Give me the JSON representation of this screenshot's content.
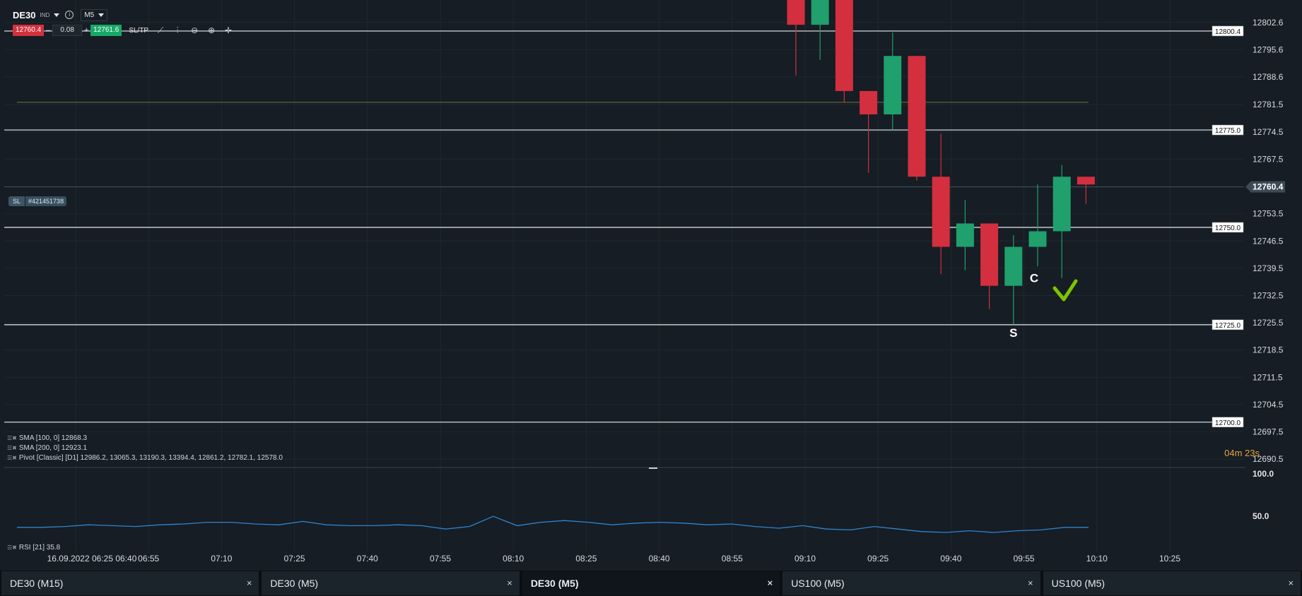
{
  "toolbar": {
    "symbol": "DE30",
    "symbol_tag": "IND",
    "timeframe": "M5",
    "sell_price": "12760.4",
    "minus": "–",
    "volume": "0.08",
    "plus": "+",
    "buy_price": "12761.6",
    "sltp_label": "SL/TP"
  },
  "sl_marker": {
    "label": "SL",
    "order_id": "#421451738"
  },
  "chart_data": {
    "type": "candlestick",
    "symbol": "DE30",
    "timeframe": "M5",
    "y_axis": {
      "ticks": [
        "12802.6",
        "12795.6",
        "12788.6",
        "12781.5",
        "12774.5",
        "12767.5",
        "12760.4",
        "12753.5",
        "12746.5",
        "12739.5",
        "12732.5",
        "12725.5",
        "12718.5",
        "12711.5",
        "12704.5",
        "12697.5",
        "12690.5"
      ],
      "range": [
        12688,
        12808
      ]
    },
    "x_axis": {
      "ticks": [
        "16.09.2022 06:25 06:40",
        "06:55",
        "07:10",
        "07:25",
        "07:40",
        "07:55",
        "08:10",
        "08:25",
        "08:40",
        "08:55",
        "09:10",
        "09:25",
        "09:40",
        "09:55",
        "10:10",
        "10:25"
      ]
    },
    "current_price": "12760.4",
    "horizontal_lines": [
      {
        "label": "12800.4",
        "value": 12800.4
      },
      {
        "label": "12775.0",
        "value": 12775.0
      },
      {
        "label": "12750.0",
        "value": 12750.0
      },
      {
        "label": "12725.0",
        "value": 12725.0
      },
      {
        "label": "12700.0",
        "value": 12700.0
      }
    ],
    "pivot_line": 12782.1,
    "candles": [
      {
        "o": 12818,
        "h": 12820,
        "c": 12802,
        "l": 12789,
        "dir": "down"
      },
      {
        "o": 12802,
        "h": 12820,
        "c": 12818,
        "l": 12793,
        "dir": "up"
      },
      {
        "o": 12818,
        "h": 12820,
        "c": 12785,
        "l": 12782,
        "dir": "down"
      },
      {
        "o": 12785,
        "h": 12785,
        "c": 12779,
        "l": 12764,
        "dir": "down"
      },
      {
        "o": 12779,
        "h": 12800,
        "c": 12794,
        "l": 12775,
        "dir": "up"
      },
      {
        "o": 12794,
        "h": 12794,
        "c": 12763,
        "l": 12762,
        "dir": "down"
      },
      {
        "o": 12763,
        "h": 12774,
        "c": 12745,
        "l": 12738,
        "dir": "down"
      },
      {
        "o": 12745,
        "h": 12757,
        "c": 12751,
        "l": 12739,
        "dir": "up"
      },
      {
        "o": 12751,
        "h": 12751,
        "c": 12735,
        "l": 12729,
        "dir": "down"
      },
      {
        "o": 12735,
        "h": 12748,
        "c": 12745,
        "l": 12725,
        "dir": "up"
      },
      {
        "o": 12745,
        "h": 12761,
        "c": 12749,
        "l": 12740,
        "dir": "up"
      },
      {
        "o": 12749,
        "h": 12766,
        "c": 12763,
        "l": 12737,
        "dir": "up"
      },
      {
        "o": 12763,
        "h": 12763,
        "c": 12761,
        "l": 12756,
        "dir": "down"
      }
    ],
    "annotations": [
      {
        "text": "C",
        "x_index": 10,
        "y": 12737
      },
      {
        "text": "S",
        "x_index": 9,
        "y": 12723
      }
    ],
    "rsi": {
      "label": "RSI [21] 35.8",
      "y_ticks": [
        "100.0",
        "50.0"
      ],
      "values": [
        36,
        36,
        37,
        39,
        38,
        37,
        39,
        40,
        42,
        42,
        40,
        39,
        43,
        39,
        38,
        38,
        39,
        38,
        34,
        37,
        49,
        38,
        42,
        44,
        42,
        39,
        41,
        42,
        41,
        39,
        40,
        37,
        35,
        38,
        34,
        33,
        37,
        34,
        31,
        30,
        32,
        30,
        32,
        33,
        36,
        36
      ]
    }
  },
  "indicators": [
    "SMA [100, 0] 12868.3",
    "SMA [200, 0] 12923.1",
    "Pivot [Classic] [D1] 12986.2, 13065.3, 13190.3, 13394.4, 12861.2, 12782.1, 12578.0"
  ],
  "timer": {
    "minutes": "04",
    "m": "m",
    "seconds": "23",
    "s": "s"
  },
  "colors": {
    "up": "#1fa06d",
    "down": "#d32f3f",
    "bg": "#161d24",
    "rsi": "#2f84cf",
    "pivot": "#6d7a34",
    "check": "#7cc400"
  },
  "tabs": [
    {
      "label": "DE30 (M15)",
      "close": "×"
    },
    {
      "label": "DE30 (M5)",
      "close": "×"
    },
    {
      "label": "DE30 (M5)",
      "close": "×",
      "active": true
    },
    {
      "label": "US100 (M5)",
      "close": "×"
    },
    {
      "label": "US100 (M5)",
      "close": "×"
    }
  ]
}
